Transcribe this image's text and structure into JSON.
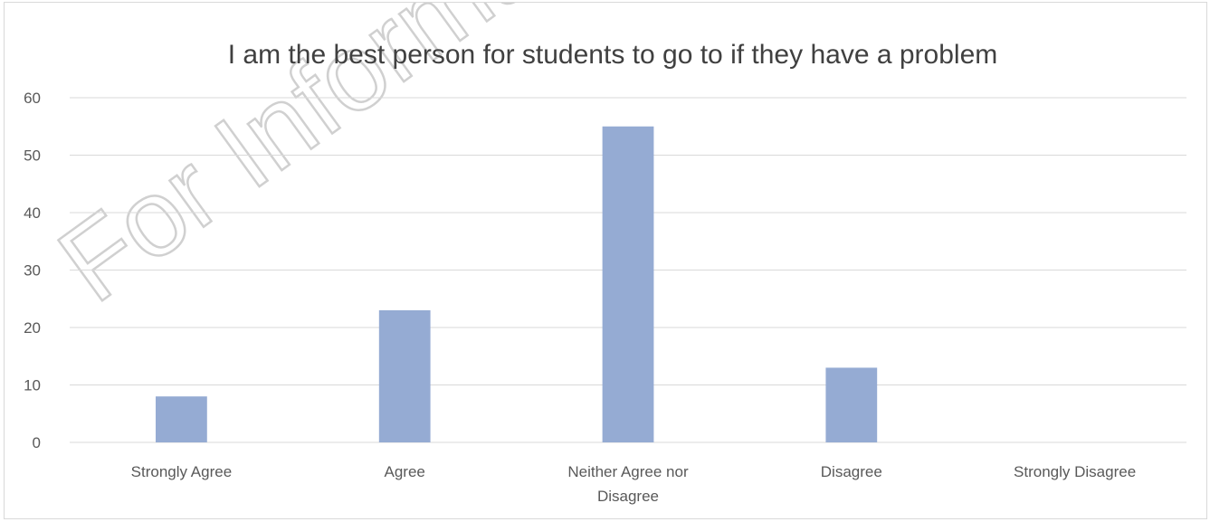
{
  "watermark": "For Information",
  "chart_data": {
    "type": "bar",
    "title": "I am the best person for students to go to if they have a problem",
    "categories": [
      "Strongly Agree",
      "Agree",
      "Neither Agree nor Disagree",
      "Disagree",
      "Strongly Disagree"
    ],
    "category_label_lines": [
      [
        "Strongly Agree"
      ],
      [
        "Agree"
      ],
      [
        "Neither Agree nor",
        "Disagree"
      ],
      [
        "Disagree"
      ],
      [
        "Strongly Disagree"
      ]
    ],
    "values": [
      8,
      23,
      55,
      13,
      0
    ],
    "ylim": [
      0,
      60
    ],
    "yticks": [
      0,
      10,
      20,
      30,
      40,
      50,
      60
    ],
    "grid": true,
    "legend": "none",
    "bar_color": "#95abd3",
    "xlabel": "",
    "ylabel": ""
  }
}
